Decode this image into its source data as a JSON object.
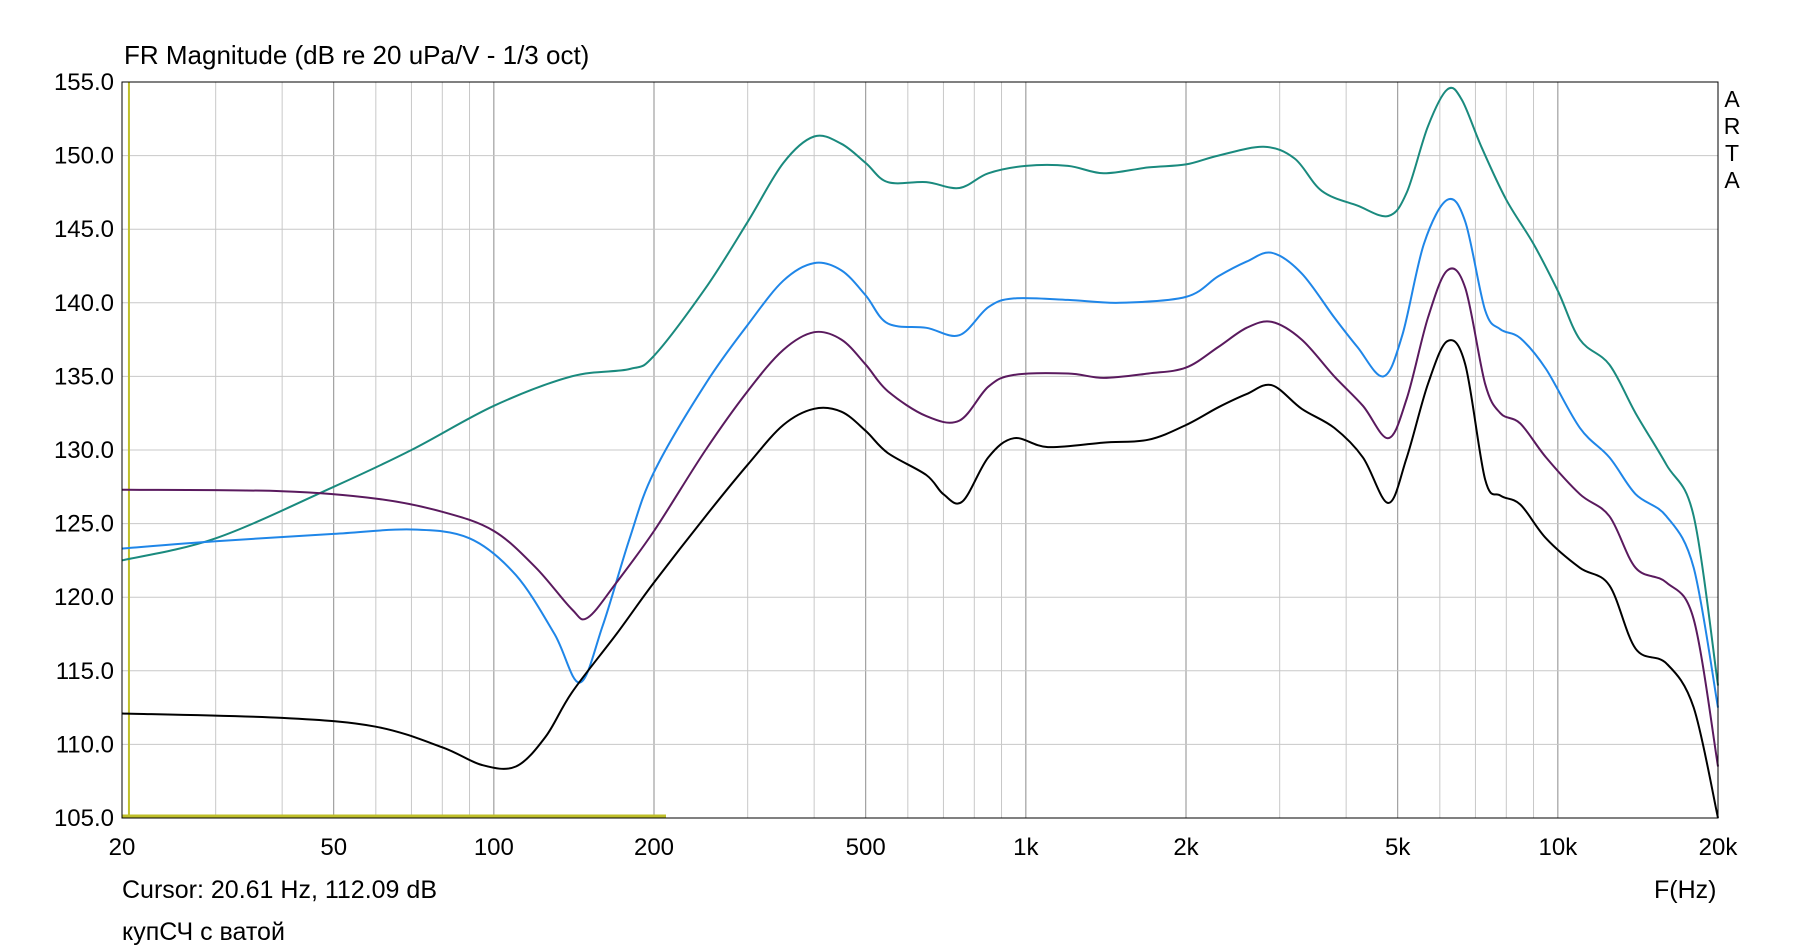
{
  "chart_data": {
    "type": "line",
    "title": "FR Magnitude (dB re 20 uPa/V - 1/3 oct)",
    "xlabel": "F(Hz)",
    "ylabel": "",
    "x_scale": "log",
    "xlim": [
      20,
      20000
    ],
    "ylim": [
      105,
      155
    ],
    "grid": true,
    "x_tick_values": [
      20,
      50,
      100,
      200,
      500,
      1000,
      2000,
      5000,
      10000,
      20000
    ],
    "x_tick_labels": [
      "20",
      "50",
      "100",
      "200",
      "500",
      "1k",
      "2k",
      "5k",
      "10k",
      "20k"
    ],
    "y_ticks": [
      "105.0",
      "110.0",
      "115.0",
      "120.0",
      "125.0",
      "130.0",
      "135.0",
      "140.0",
      "145.0",
      "150.0",
      "155.0"
    ],
    "cursor_marker": {
      "frequency_hz": 20.61,
      "level_db": 112.09
    },
    "series": [
      {
        "color": "#1a8a7e",
        "points": [
          [
            20,
            122.5
          ],
          [
            30,
            124.0
          ],
          [
            50,
            127.5
          ],
          [
            70,
            130.0
          ],
          [
            100,
            133.0
          ],
          [
            140,
            135.0
          ],
          [
            180,
            135.5
          ],
          [
            200,
            136.4
          ],
          [
            250,
            141.0
          ],
          [
            300,
            145.5
          ],
          [
            350,
            149.5
          ],
          [
            400,
            151.3
          ],
          [
            450,
            150.8
          ],
          [
            500,
            149.5
          ],
          [
            550,
            148.2
          ],
          [
            650,
            148.2
          ],
          [
            750,
            147.8
          ],
          [
            850,
            148.8
          ],
          [
            1000,
            149.3
          ],
          [
            1200,
            149.3
          ],
          [
            1400,
            148.8
          ],
          [
            1700,
            149.2
          ],
          [
            2000,
            149.4
          ],
          [
            2300,
            150.0
          ],
          [
            2800,
            150.6
          ],
          [
            3200,
            149.8
          ],
          [
            3600,
            147.6
          ],
          [
            4200,
            146.6
          ],
          [
            4800,
            145.9
          ],
          [
            5200,
            147.5
          ],
          [
            5700,
            152.0
          ],
          [
            6200,
            154.5
          ],
          [
            6600,
            153.8
          ],
          [
            7200,
            150.5
          ],
          [
            8000,
            147.0
          ],
          [
            9000,
            144.0
          ],
          [
            10000,
            140.8
          ],
          [
            11000,
            137.5
          ],
          [
            12500,
            135.8
          ],
          [
            14000,
            132.5
          ],
          [
            16000,
            129.0
          ],
          [
            18000,
            125.5
          ],
          [
            20000,
            114.0
          ]
        ]
      },
      {
        "color": "#1f86e8",
        "points": [
          [
            20,
            123.3
          ],
          [
            30,
            123.8
          ],
          [
            50,
            124.3
          ],
          [
            70,
            124.6
          ],
          [
            90,
            124.0
          ],
          [
            110,
            121.5
          ],
          [
            130,
            117.5
          ],
          [
            145,
            114.2
          ],
          [
            160,
            118.0
          ],
          [
            180,
            124.0
          ],
          [
            200,
            128.5
          ],
          [
            250,
            134.5
          ],
          [
            300,
            138.5
          ],
          [
            350,
            141.5
          ],
          [
            400,
            142.7
          ],
          [
            450,
            142.2
          ],
          [
            500,
            140.5
          ],
          [
            550,
            138.6
          ],
          [
            650,
            138.3
          ],
          [
            750,
            137.8
          ],
          [
            850,
            139.7
          ],
          [
            950,
            140.3
          ],
          [
            1200,
            140.2
          ],
          [
            1500,
            140.0
          ],
          [
            2000,
            140.4
          ],
          [
            2300,
            141.8
          ],
          [
            2600,
            142.8
          ],
          [
            2900,
            143.4
          ],
          [
            3300,
            142.0
          ],
          [
            3800,
            139.0
          ],
          [
            4200,
            137.0
          ],
          [
            4700,
            135.0
          ],
          [
            5100,
            137.8
          ],
          [
            5600,
            144.0
          ],
          [
            6200,
            147.0
          ],
          [
            6700,
            145.5
          ],
          [
            7300,
            139.5
          ],
          [
            7800,
            138.2
          ],
          [
            8500,
            137.6
          ],
          [
            9500,
            135.5
          ],
          [
            11000,
            131.5
          ],
          [
            12500,
            129.5
          ],
          [
            14000,
            127.0
          ],
          [
            16000,
            125.5
          ],
          [
            18000,
            122.0
          ],
          [
            20000,
            112.5
          ]
        ]
      },
      {
        "color": "#5a1a5e",
        "points": [
          [
            20,
            127.3
          ],
          [
            40,
            127.2
          ],
          [
            60,
            126.7
          ],
          [
            80,
            125.8
          ],
          [
            100,
            124.5
          ],
          [
            120,
            122.0
          ],
          [
            140,
            119.2
          ],
          [
            150,
            118.6
          ],
          [
            170,
            121.0
          ],
          [
            200,
            124.5
          ],
          [
            250,
            130.0
          ],
          [
            300,
            134.0
          ],
          [
            350,
            136.8
          ],
          [
            400,
            138.0
          ],
          [
            450,
            137.5
          ],
          [
            500,
            135.8
          ],
          [
            550,
            134.0
          ],
          [
            650,
            132.3
          ],
          [
            750,
            132.0
          ],
          [
            850,
            134.3
          ],
          [
            950,
            135.1
          ],
          [
            1200,
            135.2
          ],
          [
            1400,
            134.9
          ],
          [
            1700,
            135.2
          ],
          [
            2000,
            135.6
          ],
          [
            2300,
            137.0
          ],
          [
            2600,
            138.3
          ],
          [
            2900,
            138.7
          ],
          [
            3300,
            137.5
          ],
          [
            3800,
            135.0
          ],
          [
            4300,
            133.0
          ],
          [
            4800,
            130.8
          ],
          [
            5200,
            133.5
          ],
          [
            5700,
            139.0
          ],
          [
            6200,
            142.2
          ],
          [
            6700,
            141.0
          ],
          [
            7300,
            134.5
          ],
          [
            7800,
            132.5
          ],
          [
            8500,
            131.8
          ],
          [
            9500,
            129.5
          ],
          [
            11000,
            127.0
          ],
          [
            12500,
            125.5
          ],
          [
            14000,
            122.0
          ],
          [
            16000,
            121.0
          ],
          [
            18000,
            118.5
          ],
          [
            20000,
            108.5
          ]
        ]
      },
      {
        "color": "#000000",
        "points": [
          [
            20,
            112.1
          ],
          [
            40,
            111.8
          ],
          [
            60,
            111.2
          ],
          [
            80,
            109.8
          ],
          [
            95,
            108.6
          ],
          [
            110,
            108.5
          ],
          [
            125,
            110.5
          ],
          [
            140,
            113.5
          ],
          [
            170,
            117.5
          ],
          [
            200,
            121.0
          ],
          [
            250,
            125.5
          ],
          [
            300,
            129.0
          ],
          [
            350,
            131.7
          ],
          [
            400,
            132.8
          ],
          [
            450,
            132.6
          ],
          [
            500,
            131.3
          ],
          [
            550,
            129.8
          ],
          [
            650,
            128.3
          ],
          [
            700,
            127.0
          ],
          [
            760,
            126.5
          ],
          [
            850,
            129.5
          ],
          [
            950,
            130.8
          ],
          [
            1100,
            130.2
          ],
          [
            1400,
            130.5
          ],
          [
            1700,
            130.7
          ],
          [
            2000,
            131.7
          ],
          [
            2300,
            132.9
          ],
          [
            2600,
            133.8
          ],
          [
            2900,
            134.4
          ],
          [
            3300,
            132.8
          ],
          [
            3800,
            131.5
          ],
          [
            4300,
            129.5
          ],
          [
            4800,
            126.4
          ],
          [
            5200,
            129.5
          ],
          [
            5700,
            134.5
          ],
          [
            6200,
            137.4
          ],
          [
            6700,
            135.8
          ],
          [
            7300,
            128.0
          ],
          [
            7800,
            126.9
          ],
          [
            8500,
            126.3
          ],
          [
            9500,
            124.0
          ],
          [
            11000,
            122.0
          ],
          [
            12500,
            120.8
          ],
          [
            14000,
            116.5
          ],
          [
            16000,
            115.5
          ],
          [
            18000,
            112.5
          ],
          [
            20000,
            105.0
          ]
        ]
      }
    ]
  },
  "labels": {
    "title": "FR Magnitude (dB re 20 uPa/V - 1/3 oct)",
    "cursor": "Cursor: 20.61 Hz, 112.09 dB",
    "note": "купСЧ с ватой",
    "xlabel": "F(Hz)",
    "brand_letters": [
      "A",
      "R",
      "T",
      "A"
    ]
  },
  "colors": {
    "background": "#ffffff",
    "grid": "#c8c8c8",
    "frame": "#000000",
    "cursor": "#bfbf2a"
  }
}
